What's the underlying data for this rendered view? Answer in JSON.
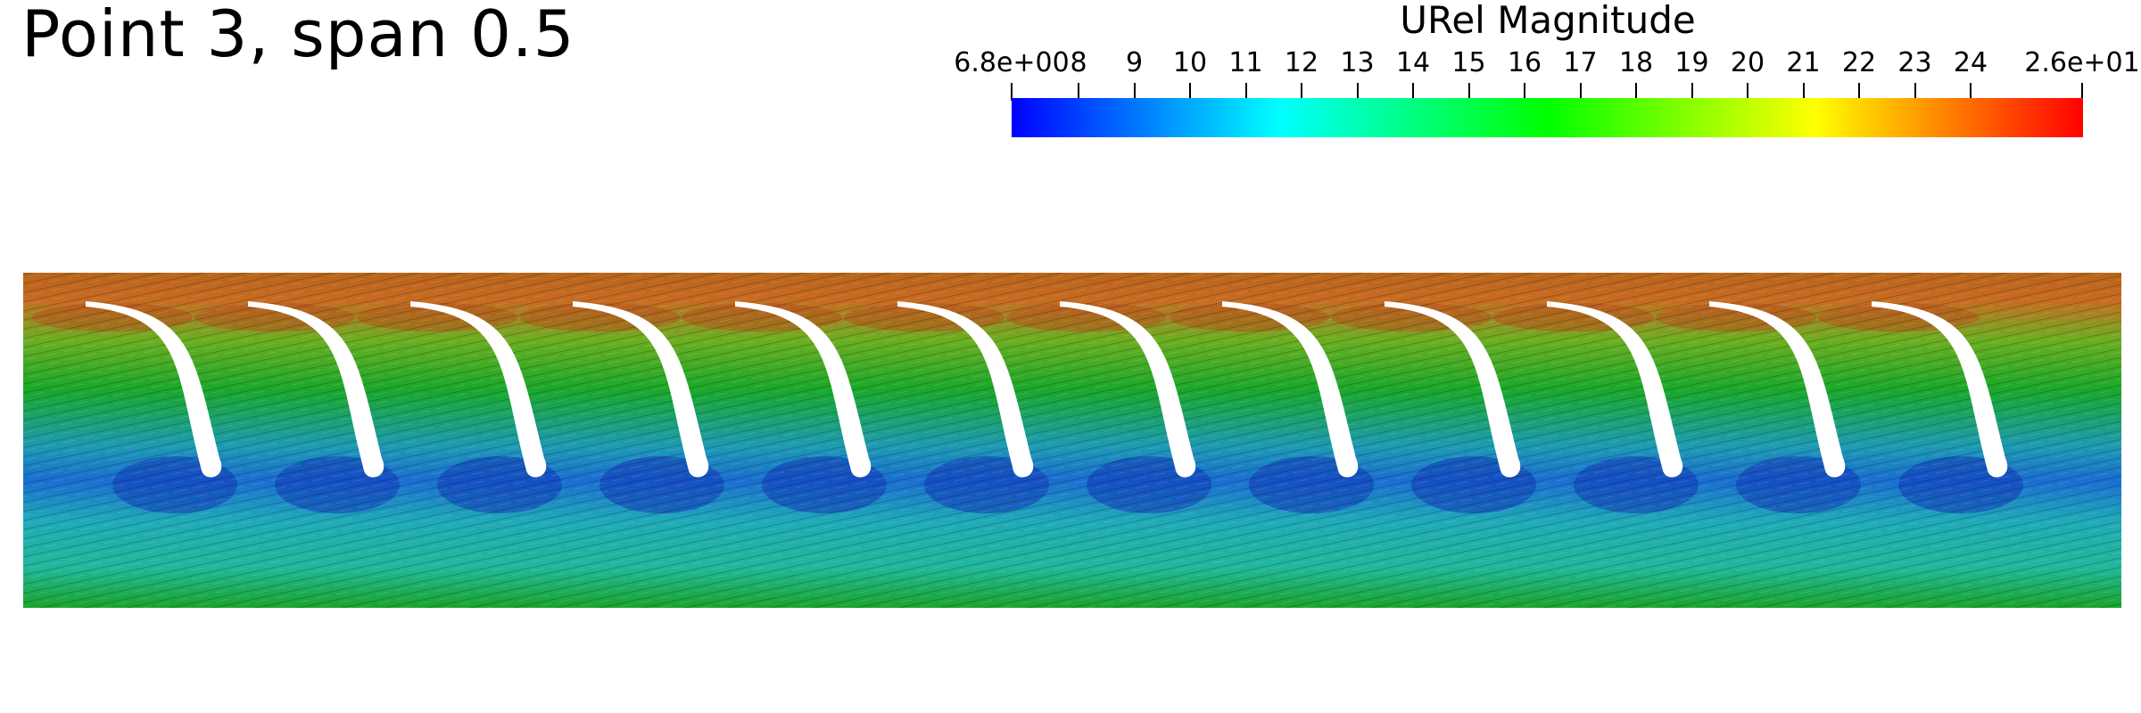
{
  "title": "Point 3, span 0.5",
  "colorbar": {
    "title": "URel Magnitude",
    "min": 6.8,
    "max": 26,
    "tick_labels": [
      "6.8e+00",
      "8",
      "9",
      "10",
      "11",
      "12",
      "13",
      "14",
      "15",
      "16",
      "17",
      "18",
      "19",
      "20",
      "21",
      "22",
      "23",
      "24",
      "2.6e+01"
    ],
    "tick_values": [
      6.8,
      8,
      9,
      10,
      11,
      12,
      13,
      14,
      15,
      16,
      17,
      18,
      19,
      20,
      21,
      22,
      23,
      24,
      26
    ],
    "colormap": [
      "#0000ff",
      "#00ffff",
      "#00ff00",
      "#ffff00",
      "#ff0000"
    ]
  },
  "field": {
    "blade_count": 12,
    "colors": {
      "low": "#1e5bc8",
      "mid": "#22b7a4",
      "high": "#18a81e",
      "top": "#c8641e",
      "peak": "#a83a12"
    }
  }
}
